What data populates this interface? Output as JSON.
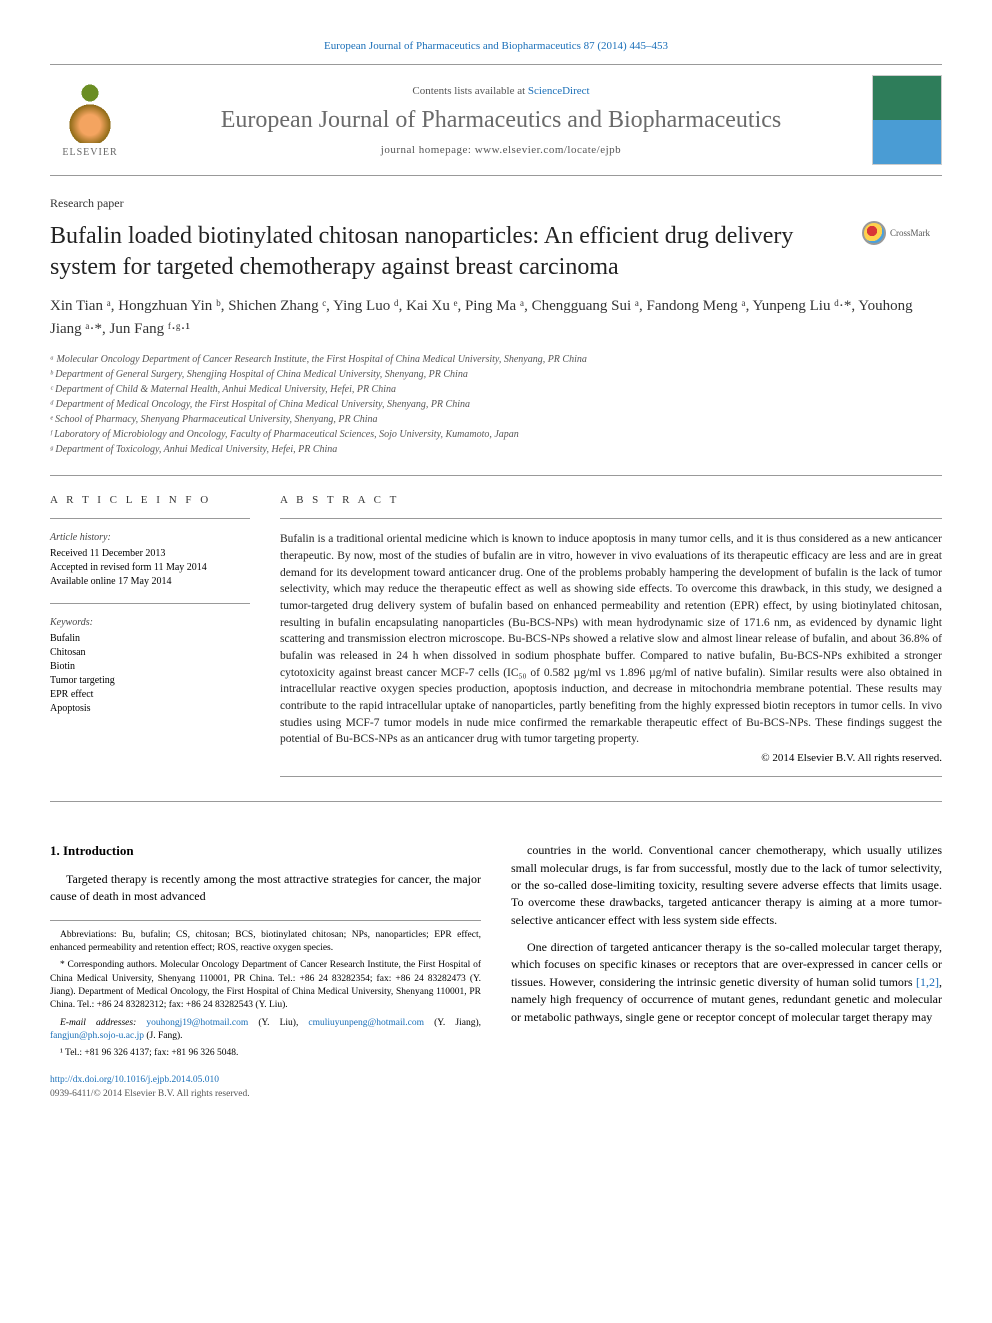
{
  "header": {
    "top_link": "European Journal of Pharmaceutics and Biopharmaceutics 87 (2014) 445–453",
    "contents_prefix": "Contents lists available at ",
    "contents_link": "ScienceDirect",
    "journal_name": "European Journal of Pharmaceutics and Biopharmaceutics",
    "homepage_prefix": "journal homepage: ",
    "homepage_url": "www.elsevier.com/locate/ejpb",
    "elsevier_label": "ELSEVIER"
  },
  "article": {
    "type": "Research paper",
    "title": "Bufalin loaded biotinylated chitosan nanoparticles: An efficient drug delivery system for targeted chemotherapy against breast carcinoma",
    "crossmark_label": "CrossMark"
  },
  "authors": {
    "list": "Xin Tian ᵃ, Hongzhuan Yin ᵇ, Shichen Zhang ᶜ, Ying Luo ᵈ, Kai Xu ᵉ, Ping Ma ᵃ, Chengguang Sui ᵃ, Fandong Meng ᵃ, Yunpeng Liu ᵈ·*, Youhong Jiang ᵃ·*, Jun Fang ᶠ·ᵍ·¹"
  },
  "affiliations": [
    "ᵃ Molecular Oncology Department of Cancer Research Institute, the First Hospital of China Medical University, Shenyang, PR China",
    "ᵇ Department of General Surgery, Shengjing Hospital of China Medical University, Shenyang, PR China",
    "ᶜ Department of Child & Maternal Health, Anhui Medical University, Hefei, PR China",
    "ᵈ Department of Medical Oncology, the First Hospital of China Medical University, Shenyang, PR China",
    "ᵉ School of Pharmacy, Shenyang Pharmaceutical University, Shenyang, PR China",
    "ᶠ Laboratory of Microbiology and Oncology, Faculty of Pharmaceutical Sciences, Sojo University, Kumamoto, Japan",
    "ᵍ Department of Toxicology, Anhui Medical University, Hefei, PR China"
  ],
  "article_info": {
    "heading": "A R T I C L E   I N F O",
    "history_label": "Article history:",
    "history": [
      "Received 11 December 2013",
      "Accepted in revised form 11 May 2014",
      "Available online 17 May 2014"
    ],
    "keywords_label": "Keywords:",
    "keywords": [
      "Bufalin",
      "Chitosan",
      "Biotin",
      "Tumor targeting",
      "EPR effect",
      "Apoptosis"
    ]
  },
  "abstract": {
    "heading": "A B S T R A C T",
    "text": "Bufalin is a traditional oriental medicine which is known to induce apoptosis in many tumor cells, and it is thus considered as a new anticancer therapeutic. By now, most of the studies of bufalin are in vitro, however in vivo evaluations of its therapeutic efficacy are less and are in great demand for its development toward anticancer drug. One of the problems probably hampering the development of bufalin is the lack of tumor selectivity, which may reduce the therapeutic effect as well as showing side effects. To overcome this drawback, in this study, we designed a tumor-targeted drug delivery system of bufalin based on enhanced permeability and retention (EPR) effect, by using biotinylated chitosan, resulting in bufalin encapsulating nanoparticles (Bu-BCS-NPs) with mean hydrodynamic size of 171.6 nm, as evidenced by dynamic light scattering and transmission electron microscope. Bu-BCS-NPs showed a relative slow and almost linear release of bufalin, and about 36.8% of bufalin was released in 24 h when dissolved in sodium phosphate buffer. Compared to native bufalin, Bu-BCS-NPs exhibited a stronger cytotoxicity against breast cancer MCF-7 cells (IC₅₀ of 0.582 µg/ml vs 1.896 µg/ml of native bufalin). Similar results were also obtained in intracellular reactive oxygen species production, apoptosis induction, and decrease in mitochondria membrane potential. These results may contribute to the rapid intracellular uptake of nanoparticles, partly benefiting from the highly expressed biotin receptors in tumor cells. In vivo studies using MCF-7 tumor models in nude mice confirmed the remarkable therapeutic effect of Bu-BCS-NPs. These findings suggest the potential of Bu-BCS-NPs as an anticancer drug with tumor targeting property.",
    "copyright": "© 2014 Elsevier B.V. All rights reserved."
  },
  "body": {
    "section1_heading": "1. Introduction",
    "left_p1": "Targeted therapy is recently among the most attractive strategies for cancer, the major cause of death in most advanced",
    "right_p1": "countries in the world. Conventional cancer chemotherapy, which usually utilizes small molecular drugs, is far from successful, mostly due to the lack of tumor selectivity, or the so-called dose-limiting toxicity, resulting severe adverse effects that limits usage. To overcome these drawbacks, targeted anticancer therapy is aiming at a more tumor-selective anticancer effect with less system side effects.",
    "right_p2_a": "One direction of targeted anticancer therapy is the so-called molecular target therapy, which focuses on specific kinases or receptors that are over-expressed in cancer cells or tissues. However, considering the intrinsic genetic diversity of human solid tumors ",
    "right_p2_ref": "[1,2]",
    "right_p2_b": ", namely high frequency of occurrence of mutant genes, redundant genetic and molecular or metabolic pathways, single gene or receptor concept of molecular target therapy may"
  },
  "footnotes": {
    "abbrev": "Abbreviations: Bu, bufalin; CS, chitosan; BCS, biotinylated chitosan; NPs, nanoparticles; EPR effect, enhanced permeability and retention effect; ROS, reactive oxygen species.",
    "corresp": "* Corresponding authors. Molecular Oncology Department of Cancer Research Institute, the First Hospital of China Medical University, Shenyang 110001, PR China. Tel.: +86 24 83282354; fax: +86 24 83282473 (Y. Jiang). Department of Medical Oncology, the First Hospital of China Medical University, Shenyang 110001, PR China. Tel.: +86 24 83282312; fax: +86 24 83282543 (Y. Liu).",
    "emails_prefix": "E-mail addresses: ",
    "email1": "youhongj19@hotmail.com",
    "email1_who": " (Y. Liu), ",
    "email2": "cmuliuyunpeng@hotmail.com",
    "email2_who": " (Y. Jiang), ",
    "email3": "fangjun@ph.sojo-u.ac.jp",
    "email3_who": " (J. Fang).",
    "tel1": "¹ Tel.: +81 96 326 4137; fax: +81 96 326 5048."
  },
  "doi": {
    "url": "http://dx.doi.org/10.1016/j.ejpb.2014.05.010",
    "issn_copyright": "0939-6411/© 2014 Elsevier B.V. All rights reserved."
  },
  "colors": {
    "link": "#1a6fb8",
    "journal_name": "#6a6a6a",
    "text": "#222222",
    "muted": "#555555",
    "border": "#999999"
  },
  "typography": {
    "title_fontsize": 24,
    "journal_fontsize": 24,
    "authors_fontsize": 15,
    "body_fontsize": 12,
    "abstract_fontsize": 11.5,
    "affiliations_fontsize": 10,
    "footnotes_fontsize": 9.5
  }
}
